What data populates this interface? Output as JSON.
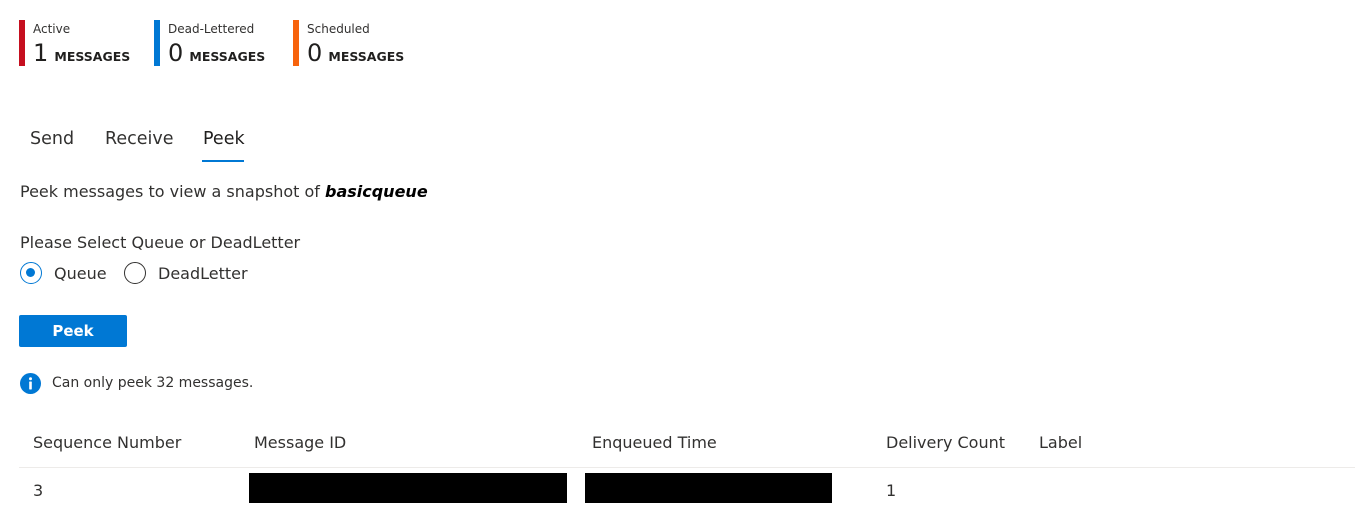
{
  "metrics": [
    {
      "label": "Active",
      "count": "1",
      "unit": "MESSAGES",
      "color": "#c50f1f"
    },
    {
      "label": "Dead-Lettered",
      "count": "0",
      "unit": "MESSAGES",
      "color": "#0078d4"
    },
    {
      "label": "Scheduled",
      "count": "0",
      "unit": "MESSAGES",
      "color": "#f7630c"
    }
  ],
  "tabs": [
    {
      "label": "Send",
      "selected": false
    },
    {
      "label": "Receive",
      "selected": false
    },
    {
      "label": "Peek",
      "selected": true
    }
  ],
  "description": {
    "prefix": "Peek messages to view a snapshot of ",
    "queue_name": "basicqueue"
  },
  "queue_selector": {
    "label": "Please Select Queue or DeadLetter",
    "options": [
      {
        "label": "Queue",
        "checked": true
      },
      {
        "label": "DeadLetter",
        "checked": false
      }
    ]
  },
  "peek_button_label": "Peek",
  "info": {
    "icon": "info-icon",
    "text": "Can only peek 32 messages."
  },
  "table": {
    "columns": [
      "Sequence Number",
      "Message ID",
      "Enqueued Time",
      "Delivery Count",
      "Label"
    ],
    "rows": [
      {
        "sequence_number": "3",
        "message_id": "",
        "enqueued_time": "",
        "delivery_count": "1",
        "label": ""
      }
    ]
  },
  "colors": {
    "accent": "#0078d4",
    "active": "#c50f1f",
    "dead_lettered": "#0078d4",
    "scheduled": "#f7630c",
    "redaction": "#000000"
  }
}
